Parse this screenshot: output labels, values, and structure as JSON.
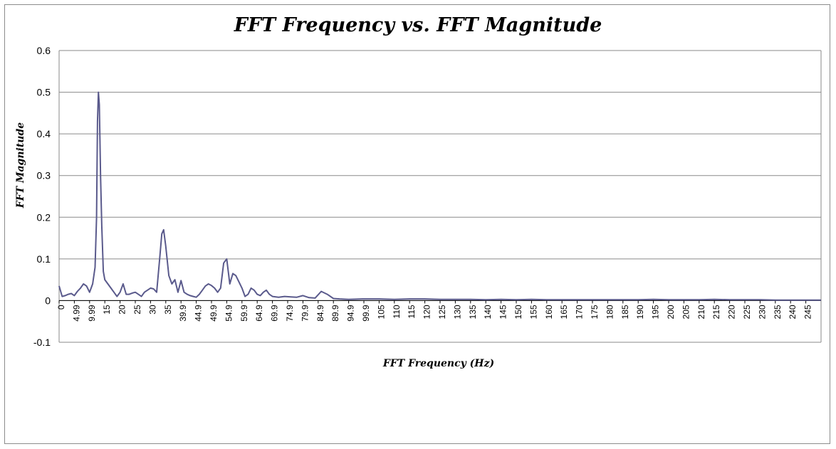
{
  "chart_data": {
    "type": "line",
    "title": "FFT Frequency vs. FFT Magnitude",
    "xlabel": "FFT Frequency (Hz)",
    "ylabel": "FFT Magnitude",
    "ylim": [
      -0.1,
      0.6
    ],
    "yticks": [
      "0.6",
      "0.5",
      "0.4",
      "0.3",
      "0.2",
      "0.1",
      "0",
      "-0.1"
    ],
    "xticks": [
      "0",
      "4.99",
      "9.99",
      "15",
      "20",
      "25",
      "30",
      "35",
      "39.9",
      "44.9",
      "49.9",
      "54.9",
      "59.9",
      "64.9",
      "69.9",
      "74.9",
      "79.9",
      "84.9",
      "89.9",
      "94.9",
      "99.9",
      "105",
      "110",
      "115",
      "120",
      "125",
      "130",
      "135",
      "140",
      "145",
      "150",
      "155",
      "160",
      "165",
      "170",
      "175",
      "180",
      "185",
      "190",
      "195",
      "200",
      "205",
      "210",
      "215",
      "220",
      "225",
      "230",
      "235",
      "240",
      "245"
    ],
    "xlim": [
      0,
      250
    ],
    "grid": true,
    "series": [
      {
        "color": "#5a5a8c",
        "x": [
          0,
          1,
          2,
          3,
          4,
          5,
          6,
          7,
          8,
          9,
          10,
          11,
          11.8,
          12.3,
          12.6,
          12.9,
          13.2,
          13.6,
          14,
          14.5,
          15,
          16,
          17,
          18,
          19,
          20,
          21,
          22,
          23,
          24,
          25,
          26,
          27,
          28,
          29,
          30,
          31,
          32,
          33,
          33.7,
          34.3,
          35,
          36,
          37,
          38,
          39,
          40,
          41,
          42,
          43,
          44,
          45,
          46,
          47,
          48,
          49,
          50,
          51,
          52,
          53,
          54,
          55,
          56,
          57,
          58,
          59,
          60,
          61,
          62,
          63,
          64,
          65,
          66,
          67,
          68,
          69,
          70,
          72,
          74,
          76,
          78,
          80,
          82,
          84,
          86,
          88,
          90,
          92,
          95,
          100,
          105,
          110,
          115,
          120,
          125,
          130,
          135,
          140,
          145,
          150,
          155,
          160,
          165,
          170,
          175,
          180,
          185,
          190,
          195,
          200,
          205,
          210,
          215,
          220,
          225,
          230,
          235,
          240,
          245,
          250
        ],
        "y": [
          0.035,
          0.01,
          0.012,
          0.015,
          0.017,
          0.012,
          0.022,
          0.03,
          0.04,
          0.035,
          0.02,
          0.04,
          0.08,
          0.2,
          0.43,
          0.5,
          0.47,
          0.3,
          0.18,
          0.07,
          0.05,
          0.04,
          0.03,
          0.02,
          0.01,
          0.02,
          0.04,
          0.015,
          0.015,
          0.018,
          0.02,
          0.015,
          0.01,
          0.02,
          0.025,
          0.03,
          0.028,
          0.02,
          0.1,
          0.16,
          0.17,
          0.13,
          0.06,
          0.04,
          0.05,
          0.02,
          0.048,
          0.02,
          0.015,
          0.012,
          0.01,
          0.008,
          0.015,
          0.025,
          0.035,
          0.04,
          0.036,
          0.03,
          0.02,
          0.03,
          0.09,
          0.1,
          0.04,
          0.065,
          0.06,
          0.045,
          0.03,
          0.01,
          0.015,
          0.03,
          0.025,
          0.015,
          0.012,
          0.02,
          0.025,
          0.015,
          0.01,
          0.008,
          0.01,
          0.009,
          0.008,
          0.012,
          0.007,
          0.006,
          0.022,
          0.015,
          0.005,
          0.004,
          0.003,
          0.004,
          0.004,
          0.003,
          0.004,
          0.004,
          0.003,
          0.003,
          0.003,
          0.002,
          0.003,
          0.002,
          0.003,
          0.002,
          0.002,
          0.002,
          0.002,
          0.002,
          0.002,
          0.002,
          0.003,
          0.002,
          0.002,
          0.002,
          0.003,
          0.002,
          0.002,
          0.002,
          0.001,
          0.001,
          0.001,
          0.001
        ]
      }
    ]
  }
}
